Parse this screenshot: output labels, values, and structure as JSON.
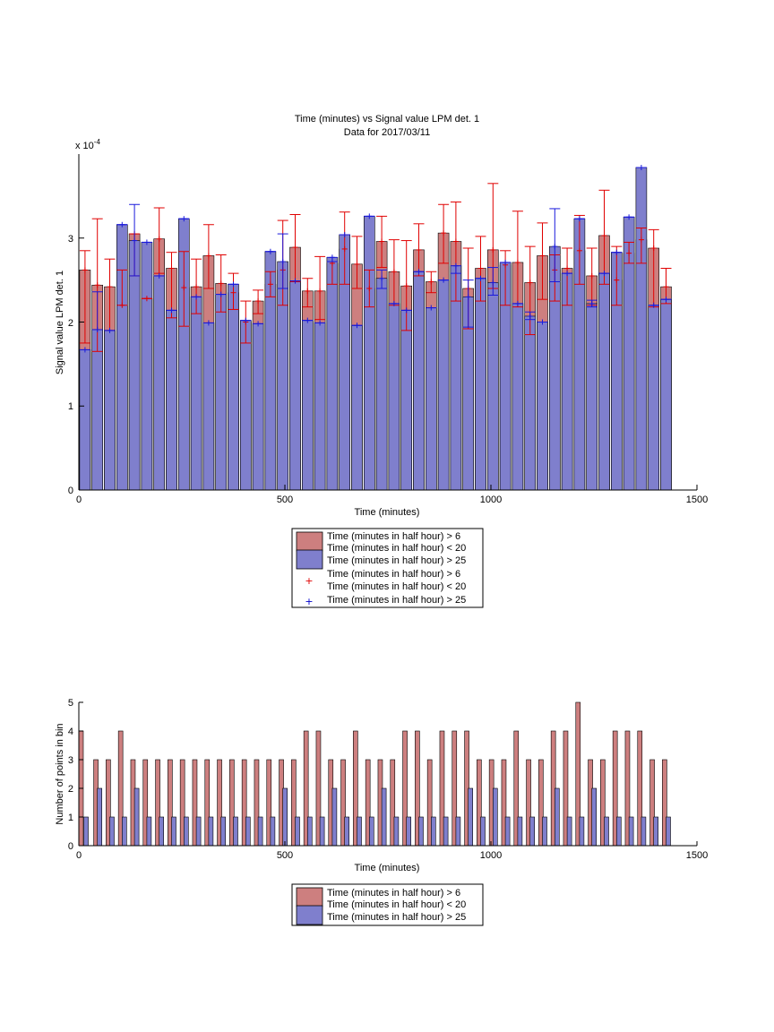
{
  "chart_data": [
    {
      "type": "bar",
      "title": "Time (minutes) vs Signal value LPM det. 1",
      "subtitle": "Data for 2017/03/11",
      "xlabel": "Time (minutes)",
      "ylabel": "Signal value LPM det. 1",
      "y_exponent_label": "x 10",
      "y_exponent": "-4",
      "xlim": [
        0,
        1500
      ],
      "ylim": [
        0,
        4
      ],
      "xticks": [
        "0",
        "500",
        "1000",
        "1500"
      ],
      "yticks": [
        "0",
        "1",
        "2",
        "3"
      ],
      "grid": false,
      "legend_position": "below",
      "legend_bar_labels": [
        "Time (minutes in half hour) > 6",
        "Time (minutes in half hour) < 20",
        "Time (minutes in half hour) > 25"
      ],
      "legend_err_labels": [
        "Time (minutes in half hour) > 6",
        "Time (minutes in half hour) < 20",
        "Time (minutes in half hour) > 25"
      ],
      "x": [
        15,
        45,
        75,
        105,
        135,
        165,
        195,
        225,
        255,
        285,
        315,
        345,
        375,
        405,
        435,
        465,
        495,
        525,
        555,
        585,
        615,
        645,
        675,
        705,
        735,
        765,
        795,
        825,
        855,
        885,
        915,
        945,
        975,
        1005,
        1035,
        1065,
        1095,
        1125,
        1155,
        1185,
        1215,
        1245,
        1275,
        1305,
        1335,
        1365,
        1395,
        1425
      ],
      "series": [
        {
          "name": "Time (minutes in half hour) > 6",
          "color": "#cd7f7f",
          "values": [
            2.62,
            2.44,
            2.42,
            2.2,
            3.05,
            2.28,
            2.99,
            2.64,
            2.41,
            2.42,
            2.79,
            2.46,
            2.35,
            2.0,
            2.25,
            2.45,
            2.62,
            2.89,
            2.37,
            2.37,
            2.7,
            2.87,
            2.69,
            2.4,
            2.96,
            2.6,
            2.43,
            2.86,
            2.48,
            3.06,
            2.96,
            2.4,
            2.64,
            2.86,
            2.68,
            2.71,
            2.47,
            2.79,
            2.62,
            2.64,
            2.85,
            2.55,
            3.03,
            2.5,
            2.82,
            2.98,
            2.88,
            2.42
          ],
          "err_low": [
            1.75,
            1.65,
            1.9,
            2.2,
            2.55,
            2.28,
            2.58,
            2.05,
            1.95,
            2.1,
            2.4,
            2.12,
            2.15,
            1.75,
            2.1,
            2.3,
            2.2,
            2.48,
            2.18,
            2.03,
            2.45,
            2.45,
            2.4,
            2.18,
            2.65,
            2.2,
            1.9,
            2.55,
            2.35,
            2.7,
            2.25,
            1.92,
            2.25,
            2.4,
            2.2,
            2.18,
            1.85,
            2.27,
            2.25,
            2.2,
            2.45,
            2.2,
            2.45,
            2.2,
            2.7,
            2.7,
            2.18,
            2.22
          ],
          "err_high": [
            2.85,
            3.23,
            2.75,
            2.62,
            3.05,
            2.28,
            3.36,
            2.83,
            2.84,
            2.75,
            3.16,
            2.8,
            2.58,
            2.25,
            2.38,
            2.6,
            3.21,
            3.28,
            2.52,
            2.78,
            2.72,
            3.31,
            3.02,
            2.62,
            3.26,
            2.98,
            2.97,
            3.17,
            2.6,
            3.4,
            3.43,
            2.88,
            3.02,
            3.65,
            2.85,
            3.32,
            2.9,
            3.18,
            2.8,
            2.88,
            3.27,
            2.88,
            3.57,
            2.9,
            2.95,
            3.12,
            3.1,
            2.64
          ]
        },
        {
          "name": "Time (minutes in half hour) > 25",
          "color": "#7f7fcd",
          "values": [
            1.67,
            1.91,
            1.9,
            3.16,
            2.97,
            2.95,
            2.55,
            2.14,
            3.23,
            2.3,
            1.99,
            2.33,
            2.45,
            2.02,
            1.98,
            2.84,
            2.72,
            2.49,
            2.02,
            1.99,
            2.77,
            3.04,
            1.96,
            3.26,
            2.52,
            2.22,
            2.14,
            2.6,
            2.17,
            2.5,
            2.67,
            2.3,
            2.52,
            2.47,
            2.71,
            2.22,
            2.07,
            2.0,
            2.9,
            2.58,
            3.23,
            2.22,
            2.58,
            2.83,
            3.25,
            3.84,
            2.2,
            2.27
          ],
          "err_low": [
            1.67,
            1.91,
            1.9,
            3.16,
            2.55,
            2.95,
            2.55,
            2.14,
            3.23,
            2.3,
            1.99,
            2.33,
            2.45,
            2.02,
            1.98,
            2.84,
            2.4,
            2.49,
            2.02,
            1.99,
            2.72,
            3.04,
            1.96,
            3.26,
            2.4,
            2.22,
            2.14,
            2.6,
            2.17,
            2.5,
            2.58,
            1.94,
            2.52,
            2.32,
            2.71,
            2.22,
            2.03,
            2.0,
            2.48,
            2.58,
            3.23,
            2.18,
            2.58,
            2.83,
            3.25,
            3.84,
            2.2,
            2.27
          ],
          "err_high": [
            1.67,
            2.36,
            1.9,
            3.16,
            3.4,
            2.95,
            2.55,
            2.14,
            3.23,
            2.3,
            1.99,
            2.33,
            2.45,
            2.02,
            1.98,
            2.84,
            3.05,
            2.49,
            2.02,
            1.99,
            2.77,
            3.04,
            1.96,
            3.26,
            2.62,
            2.22,
            2.14,
            2.6,
            2.17,
            2.5,
            2.67,
            2.5,
            2.52,
            2.65,
            2.71,
            2.22,
            2.12,
            2.0,
            3.35,
            2.58,
            3.23,
            2.26,
            2.58,
            2.83,
            3.25,
            3.84,
            2.2,
            2.27
          ]
        }
      ]
    },
    {
      "type": "bar",
      "xlabel": "Time (minutes)",
      "ylabel": "Number of points in bin",
      "xlim": [
        0,
        1500
      ],
      "ylim": [
        0,
        5
      ],
      "xticks": [
        "0",
        "500",
        "1000",
        "1500"
      ],
      "yticks": [
        "0",
        "1",
        "2",
        "3",
        "4",
        "5"
      ],
      "grid": false,
      "legend_position": "below",
      "legend_bar_labels": [
        "Time (minutes in half hour) > 6",
        "Time (minutes in half hour) < 20",
        "Time (minutes in half hour) > 25"
      ],
      "series": [
        {
          "name": "Time (minutes in half hour) > 6",
          "color": "#cd7f7f",
          "x": [
            0,
            36,
            66,
            96,
            126,
            156,
            186,
            216,
            246,
            276,
            306,
            336,
            366,
            396,
            426,
            456,
            486,
            516,
            546,
            576,
            606,
            636,
            666,
            696,
            726,
            756,
            786,
            816,
            846,
            876,
            906,
            936,
            966,
            996,
            1026,
            1056,
            1086,
            1116,
            1146,
            1176,
            1206,
            1236,
            1266,
            1296,
            1326,
            1356,
            1386,
            1416
          ],
          "values": [
            4,
            3,
            3,
            4,
            3,
            3,
            3,
            3,
            3,
            3,
            3,
            3,
            3,
            3,
            3,
            3,
            3,
            3,
            4,
            4,
            3,
            3,
            4,
            3,
            3,
            3,
            4,
            4,
            3,
            4,
            4,
            4,
            3,
            3,
            3,
            4,
            3,
            3,
            4,
            4,
            5,
            3,
            3,
            4,
            4,
            4,
            3,
            3
          ]
        },
        {
          "name": "Time (minutes in half hour) > 25",
          "color": "#7f7fcd",
          "x": [
            12,
            45,
            75,
            105,
            135,
            165,
            195,
            225,
            255,
            285,
            315,
            345,
            375,
            405,
            435,
            465,
            495,
            525,
            555,
            585,
            615,
            645,
            675,
            705,
            735,
            765,
            795,
            825,
            855,
            885,
            915,
            945,
            975,
            1005,
            1035,
            1065,
            1095,
            1125,
            1155,
            1185,
            1215,
            1245,
            1275,
            1305,
            1335,
            1365,
            1395,
            1425
          ],
          "values": [
            1,
            2,
            1,
            1,
            2,
            1,
            1,
            1,
            1,
            1,
            1,
            1,
            1,
            1,
            1,
            1,
            2,
            1,
            1,
            1,
            2,
            1,
            1,
            1,
            2,
            1,
            1,
            1,
            1,
            1,
            1,
            2,
            1,
            2,
            1,
            1,
            1,
            1,
            2,
            1,
            1,
            2,
            1,
            1,
            1,
            1,
            1,
            1
          ]
        }
      ]
    }
  ]
}
